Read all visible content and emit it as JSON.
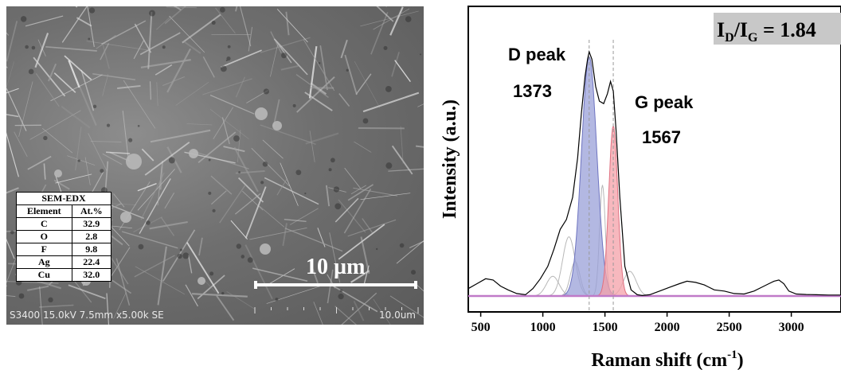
{
  "sem_image": {
    "edx_table": {
      "title": "SEM-EDX",
      "headers": [
        "Element",
        "At.%"
      ],
      "rows": [
        {
          "element": "C",
          "value": "32.9"
        },
        {
          "element": "O",
          "value": "2.8"
        },
        {
          "element": "F",
          "value": "9.8"
        },
        {
          "element": "Ag",
          "value": "22.4"
        },
        {
          "element": "Cu",
          "value": "32.0"
        }
      ]
    },
    "scale_bar_label": "10 µm",
    "footer_info": "S3400 15.0kV 7.5mm x5.00k SE",
    "footer_scale": "10.0um"
  },
  "chart_data": {
    "type": "line",
    "xlabel": "Raman shift (cm",
    "xlabel_sup": "-1",
    "xlabel_close": ")",
    "ylabel": "Intensity (a.u.)",
    "xlim": [
      400,
      3400
    ],
    "xticks": [
      500,
      1000,
      1500,
      2000,
      2500,
      3000
    ],
    "annotations": {
      "d_peak_name": "D peak",
      "d_peak_position": "1373",
      "g_peak_name": "G peak",
      "g_peak_position": "1567",
      "ratio_prefix": "I",
      "ratio_sub1": "D",
      "ratio_slash": "/I",
      "ratio_sub2": "G",
      "ratio_value": " = 1.84"
    },
    "d_peak": {
      "center": 1373,
      "amplitude": 0.97,
      "fwhm": 145,
      "color": "#9aa0d8"
    },
    "g_peak": {
      "center": 1567,
      "amplitude": 0.69,
      "fwhm": 85,
      "color": "#f4a0a8"
    },
    "minor_peaks": [
      {
        "center": 1210,
        "amplitude": 0.24,
        "fwhm": 120
      },
      {
        "center": 1260,
        "amplitude": 0.14,
        "fwhm": 90
      },
      {
        "center": 1480,
        "amplitude": 0.45,
        "fwhm": 55
      },
      {
        "center": 1080,
        "amplitude": 0.08,
        "fwhm": 120
      },
      {
        "center": 1700,
        "amplitude": 0.1,
        "fwhm": 120
      }
    ],
    "spectrum": {
      "x": [
        400,
        470,
        540,
        600,
        660,
        720,
        790,
        860,
        920,
        980,
        1040,
        1090,
        1140,
        1190,
        1240,
        1280,
        1310,
        1340,
        1360,
        1373,
        1395,
        1425,
        1455,
        1490,
        1520,
        1545,
        1567,
        1590,
        1620,
        1660,
        1710,
        1760,
        1800,
        1860,
        1940,
        2020,
        2100,
        2160,
        2230,
        2300,
        2380,
        2460,
        2540,
        2620,
        2700,
        2760,
        2820,
        2860,
        2900,
        2940,
        2980,
        3040,
        3120,
        3200,
        3300,
        3400
      ],
      "y": [
        0.03,
        0.05,
        0.07,
        0.065,
        0.04,
        0.025,
        0.01,
        0.005,
        0.03,
        0.07,
        0.12,
        0.19,
        0.27,
        0.31,
        0.4,
        0.56,
        0.74,
        0.89,
        0.96,
        0.99,
        0.96,
        0.85,
        0.79,
        0.78,
        0.82,
        0.87,
        0.83,
        0.67,
        0.4,
        0.12,
        0.025,
        0.005,
        0.002,
        0.005,
        0.02,
        0.035,
        0.05,
        0.06,
        0.055,
        0.045,
        0.025,
        0.02,
        0.01,
        0.008,
        0.02,
        0.035,
        0.05,
        0.06,
        0.065,
        0.05,
        0.02,
        0.008,
        0.006,
        0.005,
        0.004,
        0.004
      ]
    },
    "baseline_color": "#c07ac8",
    "reference_line_color": "#999999"
  }
}
